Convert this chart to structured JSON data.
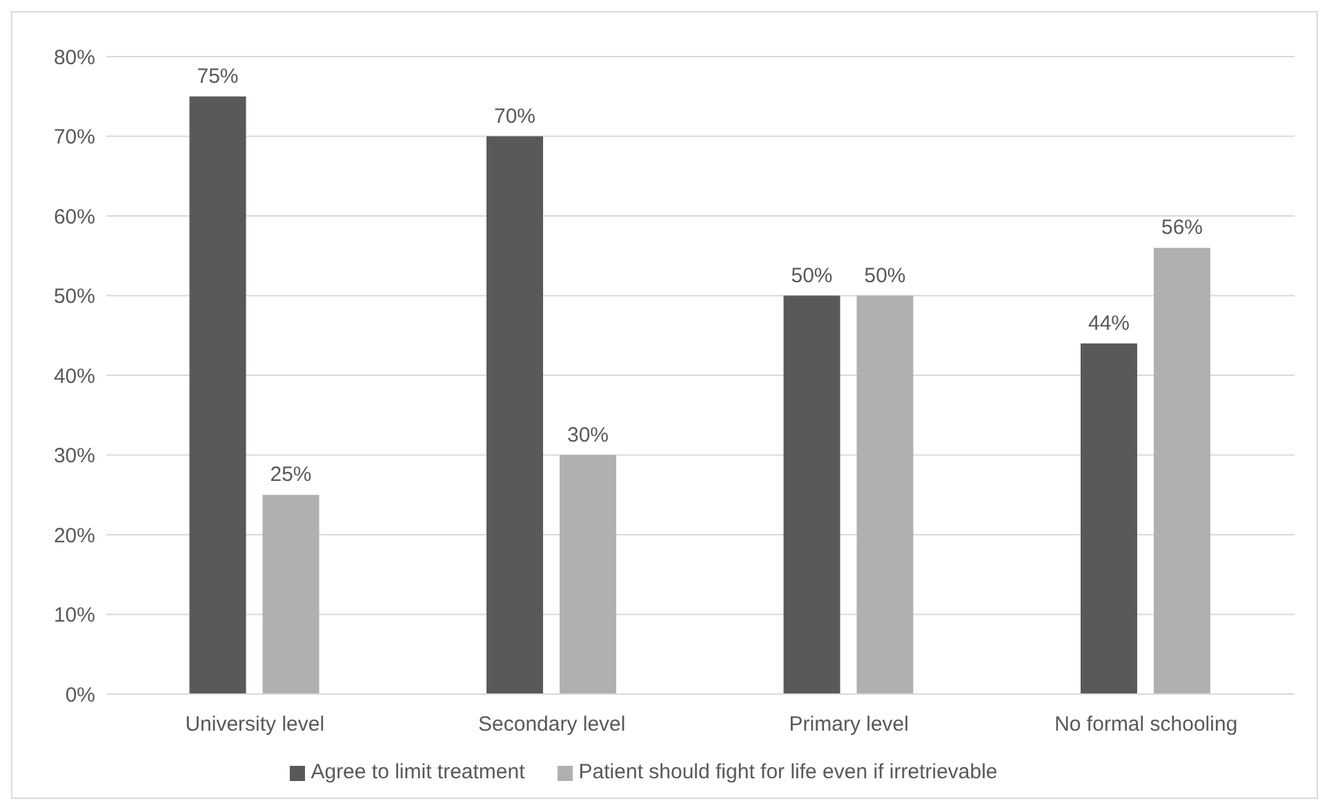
{
  "chart_data": {
    "type": "bar",
    "categories": [
      "University level",
      "Secondary level",
      "Primary level",
      "No formal schooling"
    ],
    "series": [
      {
        "name": "Agree to limit treatment",
        "color": "#595959",
        "values": [
          75,
          70,
          50,
          44
        ],
        "value_labels": [
          "75%",
          "70%",
          "50%",
          "44%"
        ]
      },
      {
        "name": "Patient should fight for life even if irretrievable",
        "color": "#b0b0b0",
        "values": [
          25,
          30,
          50,
          56
        ],
        "value_labels": [
          "25%",
          "30%",
          "50%",
          "56%"
        ]
      }
    ],
    "ylim": [
      0,
      80
    ],
    "yticks": [
      {
        "value": 0,
        "label": "0%"
      },
      {
        "value": 10,
        "label": "10%"
      },
      {
        "value": 20,
        "label": "20%"
      },
      {
        "value": 30,
        "label": "30%"
      },
      {
        "value": 40,
        "label": "40%"
      },
      {
        "value": 50,
        "label": "50%"
      },
      {
        "value": 60,
        "label": "60%"
      },
      {
        "value": 70,
        "label": "70%"
      },
      {
        "value": 80,
        "label": "80%"
      }
    ],
    "grid": "y",
    "legend": "bottom"
  }
}
